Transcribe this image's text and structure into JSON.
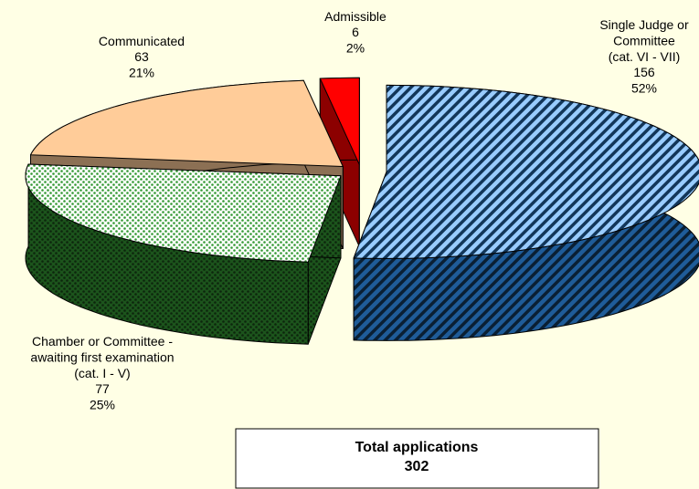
{
  "chart_data": {
    "type": "pie3d",
    "categories": [
      "Single Judge or\nCommittee\n(cat. VI - VII)",
      "Chamber or Committee -\nawaiting first examination\n(cat. I - V)",
      "Communicated",
      "Admissible"
    ],
    "values": [
      156,
      77,
      63,
      6
    ],
    "percent_labels": [
      "52%",
      "25%",
      "21%",
      "2%"
    ],
    "colors": [
      "#3399ff",
      "#339933",
      "#ffcc99",
      "#ff0000"
    ],
    "patterns": [
      "stripes",
      "dots",
      "solid",
      "solid"
    ],
    "total_label": "Total applications",
    "total": 302
  }
}
